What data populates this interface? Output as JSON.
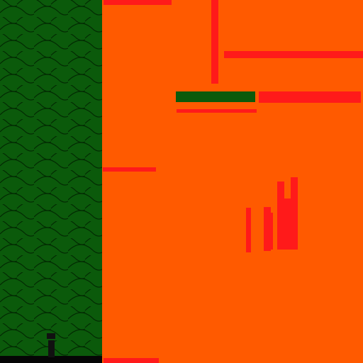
{
  "palette": {
    "playfield_bg": "#ff5a00",
    "wall_red": "#ff1a1a",
    "platform_green": "#0b5a0b",
    "panel_green": "#0b5a0b",
    "panel_pattern_line": "#022a02",
    "floor_black": "#050505",
    "player_black": "#111111"
  },
  "scene": {
    "panel_texture": "scale-pattern",
    "player_icon": "stick-figure-icon"
  }
}
